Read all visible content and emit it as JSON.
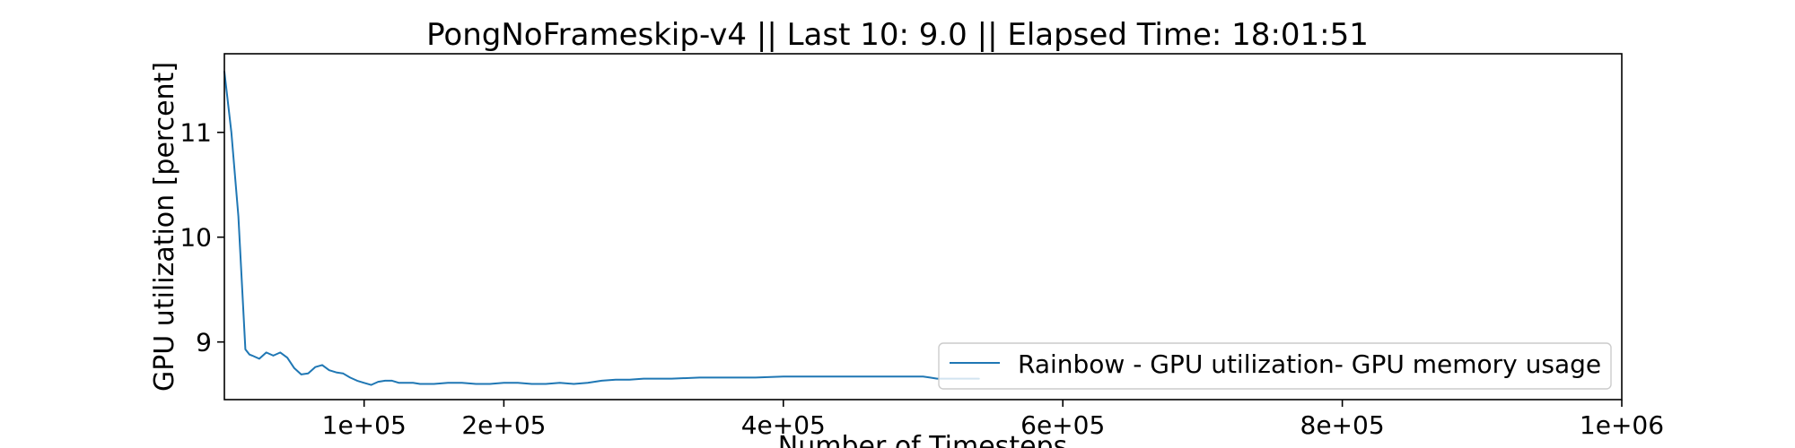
{
  "chart_data": {
    "type": "line",
    "title": "PongNoFrameskip-v4 || Last 10: 9.0 || Elapsed Time: 18:01:51",
    "xlabel": "Number of Timesteps",
    "ylabel": "GPU utilization [percent]",
    "xlim": [
      0,
      1000000
    ],
    "ylim": [
      8.45,
      11.75
    ],
    "x_ticks": [
      {
        "value": 100000,
        "label": "1e+05"
      },
      {
        "value": 200000,
        "label": "2e+05"
      },
      {
        "value": 400000,
        "label": "4e+05"
      },
      {
        "value": 600000,
        "label": "6e+05"
      },
      {
        "value": 800000,
        "label": "8e+05"
      },
      {
        "value": 1000000,
        "label": "1e+06"
      }
    ],
    "y_ticks": [
      {
        "value": 9,
        "label": "9"
      },
      {
        "value": 10,
        "label": "10"
      },
      {
        "value": 11,
        "label": "11"
      }
    ],
    "grid": false,
    "legend_position": "lower-right",
    "series": [
      {
        "name": "Rainbow - GPU utilization- GPU memory usage",
        "color": "#1f77b4",
        "x": [
          0,
          5000,
          10000,
          15000,
          18000,
          20000,
          25000,
          30000,
          35000,
          40000,
          45000,
          50000,
          55000,
          60000,
          65000,
          70000,
          75000,
          80000,
          85000,
          90000,
          95000,
          100000,
          105000,
          110000,
          115000,
          120000,
          125000,
          130000,
          135000,
          140000,
          150000,
          160000,
          170000,
          180000,
          190000,
          200000,
          210000,
          220000,
          230000,
          240000,
          250000,
          260000,
          270000,
          280000,
          290000,
          300000,
          320000,
          340000,
          360000,
          380000,
          400000,
          420000,
          440000,
          460000,
          480000,
          500000,
          505000,
          510000,
          520000,
          540000
        ],
        "y": [
          11.58,
          11.0,
          10.2,
          8.93,
          8.88,
          8.87,
          8.84,
          8.9,
          8.87,
          8.9,
          8.85,
          8.75,
          8.69,
          8.7,
          8.76,
          8.78,
          8.73,
          8.71,
          8.7,
          8.66,
          8.63,
          8.61,
          8.59,
          8.62,
          8.63,
          8.63,
          8.61,
          8.61,
          8.61,
          8.6,
          8.6,
          8.61,
          8.61,
          8.6,
          8.6,
          8.61,
          8.61,
          8.6,
          8.6,
          8.61,
          8.6,
          8.61,
          8.63,
          8.64,
          8.64,
          8.65,
          8.65,
          8.66,
          8.66,
          8.66,
          8.67,
          8.67,
          8.67,
          8.67,
          8.67,
          8.67,
          8.66,
          8.65,
          8.65,
          8.65
        ]
      }
    ]
  }
}
